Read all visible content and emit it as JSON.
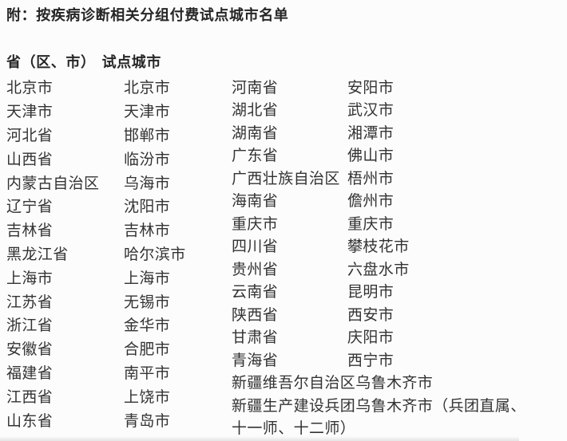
{
  "document": {
    "title": "附：按疾病诊断相关分组付费试点城市名单",
    "table": {
      "header": {
        "province": "省（区、市）",
        "city": "试点城市"
      },
      "left_rows": [
        {
          "province": "北京市",
          "city": "北京市"
        },
        {
          "province": "天津市",
          "city": "天津市"
        },
        {
          "province": "河北省",
          "city": "邯郸市"
        },
        {
          "province": "山西省",
          "city": "临汾市"
        },
        {
          "province": "内蒙古自治区",
          "city": "乌海市"
        },
        {
          "province": "辽宁省",
          "city": "沈阳市"
        },
        {
          "province": "吉林省",
          "city": "吉林市"
        },
        {
          "province": "黑龙江省",
          "city": "哈尔滨市"
        },
        {
          "province": "上海市",
          "city": "上海市"
        },
        {
          "province": "江苏省",
          "city": "无锡市"
        },
        {
          "province": "浙江省",
          "city": "金华市"
        },
        {
          "province": "安徽省",
          "city": "合肥市"
        },
        {
          "province": "福建省",
          "city": "南平市"
        },
        {
          "province": "江西省",
          "city": "上饶市"
        },
        {
          "province": "山东省",
          "city": "青岛市"
        }
      ],
      "right_rows": [
        {
          "province": "河南省",
          "city": "安阳市"
        },
        {
          "province": "湖北省",
          "city": "武汉市"
        },
        {
          "province": "湖南省",
          "city": "湘潭市"
        },
        {
          "province": "广东省",
          "city": "佛山市"
        },
        {
          "province": "广西壮族自治区",
          "city": "梧州市"
        },
        {
          "province": "海南省",
          "city": "儋州市"
        },
        {
          "province": "重庆市",
          "city": "重庆市"
        },
        {
          "province": "四川省",
          "city": "攀枝花市"
        },
        {
          "province": "贵州省",
          "city": "六盘水市"
        },
        {
          "province": "云南省",
          "city": "昆明市"
        },
        {
          "province": "陕西省",
          "city": "西安市"
        },
        {
          "province": "甘肃省",
          "city": "庆阳市"
        },
        {
          "province": "青海省",
          "city": "西宁市"
        },
        {
          "province": "新疆维吾尔自治区",
          "city": "乌鲁木齐市"
        },
        {
          "province": "新疆生产建设兵团",
          "city": "乌鲁木齐市（兵团直属、"
        }
      ],
      "right_continuation": "十一师、十二师）"
    }
  }
}
